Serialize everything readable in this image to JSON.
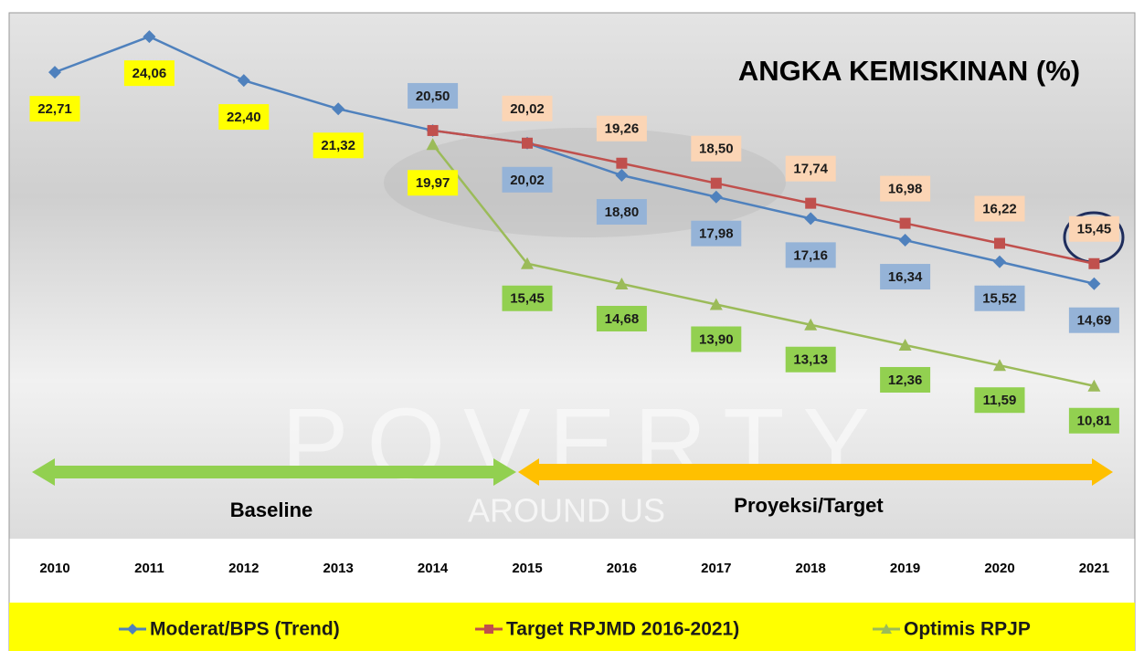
{
  "chart_data": {
    "type": "line",
    "title": "ANGKA KEMISKINAN (%)",
    "watermark": [
      "POVERTY",
      "AROUND US"
    ],
    "periods": [
      "Baseline",
      "Proyeksi/Target"
    ],
    "categories": [
      "2010",
      "2011",
      "2012",
      "2013",
      "2014",
      "2015",
      "2016",
      "2017",
      "2018",
      "2019",
      "2020",
      "2021"
    ],
    "ylim": [
      9,
      25
    ],
    "series": [
      {
        "name": "Moderat/BPS (Trend)",
        "color": "#4f81bd",
        "marker": "diamond",
        "values": [
          22.71,
          24.06,
          22.4,
          21.32,
          20.5,
          20.02,
          18.8,
          17.98,
          17.16,
          16.34,
          15.52,
          14.69
        ],
        "value_labels": [
          "22,71",
          "24,06",
          "22,40",
          "21,32",
          "20,50",
          "20,02",
          "18,80",
          "17,98",
          "17,16",
          "16,34",
          "15,52",
          "14,69"
        ]
      },
      {
        "name": "Target RPJMD 2016-2021)",
        "color": "#c0504d",
        "marker": "square",
        "values": [
          null,
          null,
          null,
          null,
          20.5,
          20.02,
          19.26,
          18.5,
          17.74,
          16.98,
          16.22,
          15.45
        ],
        "value_labels": [
          null,
          null,
          null,
          null,
          null,
          "20,02",
          "19,26",
          "18,50",
          "17,74",
          "16,98",
          "16,22",
          "15,45"
        ]
      },
      {
        "name": "Optimis RPJP",
        "color": "#9bbb59",
        "marker": "triangle",
        "values": [
          null,
          null,
          null,
          null,
          19.97,
          15.45,
          14.68,
          13.9,
          13.13,
          12.36,
          11.59,
          10.81
        ],
        "value_labels": [
          null,
          null,
          null,
          null,
          "19,97",
          "15,45",
          "14,68",
          "13,90",
          "13,13",
          "12,36",
          "11,59",
          "10,81"
        ]
      }
    ],
    "legend": "bottom"
  }
}
